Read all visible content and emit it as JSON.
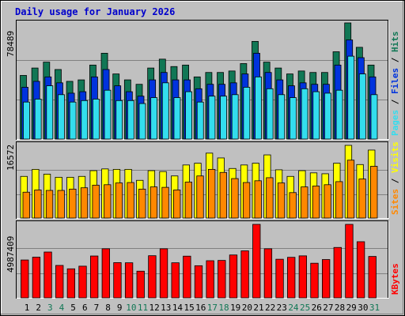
{
  "title": "Daily usage for January 2026",
  "colors": {
    "background": "#c0c0c0",
    "title": "#0000cc",
    "hits": "#117755",
    "files": "#0033dd",
    "pages": "#33ddee",
    "visits": "#ffff00",
    "sites": "#ff8800",
    "kbytes": "#ff0000",
    "weekday_label": "#000000",
    "weekend_label": "#117755"
  },
  "chart_data": [
    {
      "type": "bar",
      "panel": "top",
      "ylabel_parts": [
        "Pages",
        "Files",
        "Hits"
      ],
      "ymax_label": "78489",
      "ylim": [
        0,
        78489
      ],
      "grid": true,
      "categories": [
        "1",
        "2",
        "3",
        "4",
        "5",
        "6",
        "7",
        "8",
        "9",
        "10",
        "11",
        "12",
        "13",
        "14",
        "15",
        "16",
        "17",
        "18",
        "19",
        "20",
        "21",
        "22",
        "23",
        "24",
        "25",
        "26",
        "27",
        "28",
        "29",
        "30",
        "31"
      ],
      "series": [
        {
          "name": "Hits",
          "values": [
            43000,
            48000,
            52000,
            47000,
            39000,
            40000,
            50000,
            58000,
            44000,
            40000,
            37000,
            48000,
            54000,
            49000,
            50000,
            42000,
            45000,
            45000,
            46000,
            51000,
            66000,
            52000,
            48000,
            44000,
            46000,
            45000,
            45000,
            59000,
            78489,
            62000,
            50000
          ]
        },
        {
          "name": "Files",
          "values": [
            35000,
            39000,
            42000,
            38000,
            31000,
            32000,
            42000,
            47000,
            36000,
            32000,
            29000,
            40000,
            45000,
            40000,
            40000,
            34000,
            37000,
            37000,
            38000,
            44000,
            58000,
            45000,
            40000,
            36000,
            38000,
            37000,
            37000,
            50000,
            67000,
            55000,
            42000
          ]
        },
        {
          "name": "Pages",
          "values": [
            25000,
            27000,
            36000,
            30000,
            25000,
            26000,
            27000,
            33000,
            26000,
            26000,
            24000,
            28000,
            38000,
            28000,
            32000,
            25000,
            29000,
            29000,
            30000,
            35000,
            42000,
            34000,
            30000,
            28000,
            34000,
            32000,
            31000,
            33000,
            56000,
            44000,
            30000
          ]
        }
      ]
    },
    {
      "type": "bar",
      "panel": "middle",
      "ylabel_parts": [
        "Sites",
        "Visits"
      ],
      "ymax_label": "16572",
      "ylim": [
        0,
        16572
      ],
      "grid": true,
      "categories": [
        "1",
        "2",
        "3",
        "4",
        "5",
        "6",
        "7",
        "8",
        "9",
        "10",
        "11",
        "12",
        "13",
        "14",
        "15",
        "16",
        "17",
        "18",
        "19",
        "20",
        "21",
        "22",
        "23",
        "24",
        "25",
        "26",
        "27",
        "28",
        "29",
        "30",
        "31"
      ],
      "series": [
        {
          "name": "Visits",
          "values": [
            9500,
            11100,
            10000,
            9300,
            9300,
            9500,
            10800,
            11200,
            11100,
            11100,
            8600,
            10800,
            10600,
            9600,
            12100,
            12500,
            14800,
            13700,
            11300,
            12100,
            12500,
            14400,
            11000,
            9500,
            10800,
            10300,
            10100,
            12500,
            16572,
            12200,
            15500
          ]
        },
        {
          "name": "Sites",
          "values": [
            5900,
            6400,
            6300,
            6300,
            6600,
            6900,
            7500,
            7600,
            8000,
            8100,
            6600,
            7100,
            7000,
            6400,
            8200,
            9600,
            11100,
            10400,
            9000,
            8100,
            8500,
            9200,
            8000,
            5800,
            7100,
            7300,
            7600,
            8300,
            13200,
            8900,
            11800
          ]
        }
      ]
    },
    {
      "type": "bar",
      "panel": "bottom",
      "ylabel_parts": [
        "KBytes"
      ],
      "ymax_label": "4987409",
      "ylim": [
        0,
        4987409
      ],
      "grid": true,
      "categories": [
        "1",
        "2",
        "3",
        "4",
        "5",
        "6",
        "7",
        "8",
        "9",
        "10",
        "11",
        "12",
        "13",
        "14",
        "15",
        "16",
        "17",
        "18",
        "19",
        "20",
        "21",
        "22",
        "23",
        "24",
        "25",
        "26",
        "27",
        "28",
        "29",
        "30",
        "31"
      ],
      "series": [
        {
          "name": "KBytes",
          "values": [
            2570000,
            2760000,
            3110000,
            2200000,
            1970000,
            2150000,
            2840000,
            3330000,
            2390000,
            2380000,
            1810000,
            2860000,
            3330000,
            2380000,
            2830000,
            2180000,
            2520000,
            2540000,
            2910000,
            3190000,
            4987409,
            3330000,
            2620000,
            2750000,
            2850000,
            2350000,
            2600000,
            3420000,
            4987409,
            3810000,
            2810000
          ]
        }
      ]
    }
  ]
}
